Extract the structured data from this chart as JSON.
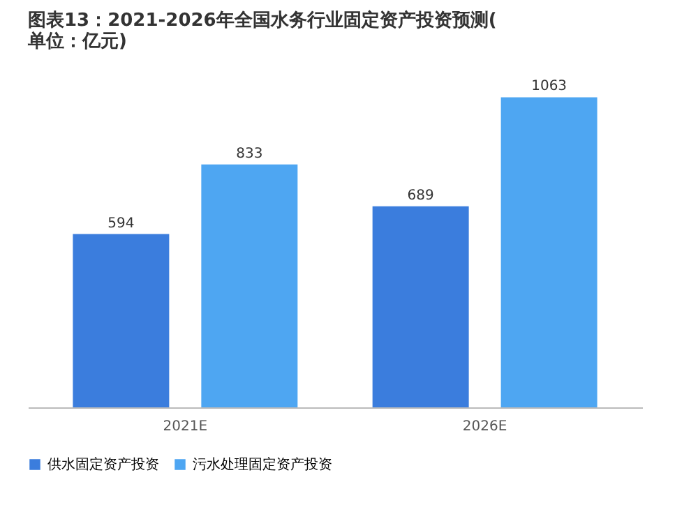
{
  "chart_data": {
    "type": "bar",
    "title": "图表13：2021-2026年全国水务行业固定资产投资预测(单位：亿元)",
    "categories": [
      "2021E",
      "2026E"
    ],
    "series": [
      {
        "name": "供水固定资产投资",
        "color": "#3b7ddd",
        "values": [
          594,
          689
        ]
      },
      {
        "name": "污水处理固定资产投资",
        "color": "#4ea6f2",
        "values": [
          833,
          1063
        ]
      }
    ],
    "data_labels": true,
    "legend": "bottom",
    "grid": false
  }
}
